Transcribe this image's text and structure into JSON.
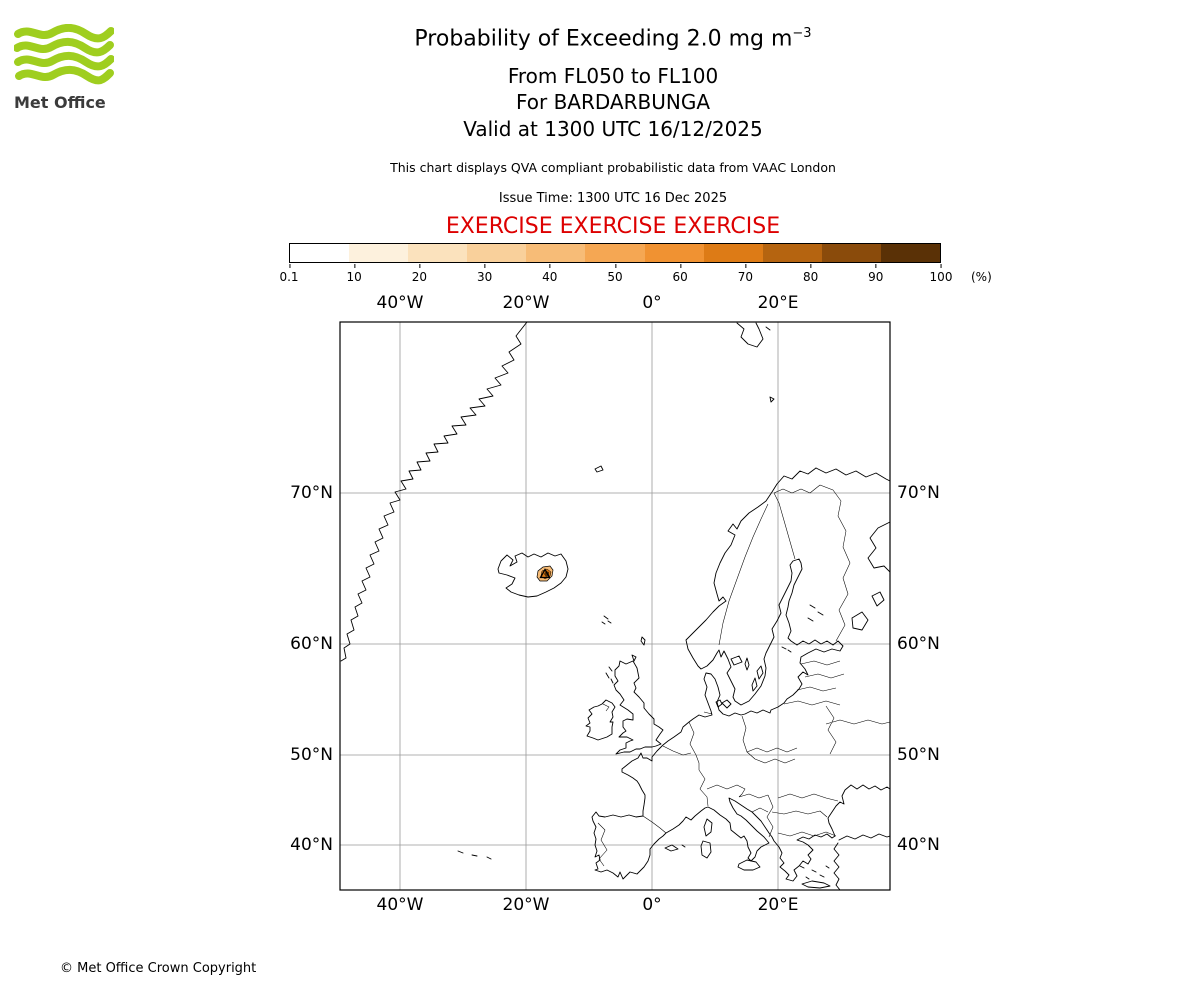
{
  "logo": {
    "text": "Met Office"
  },
  "header": {
    "title": "Probability of Exceeding 2.0 mg m",
    "title_exponent": "−3",
    "line1": "From FL050 to FL100",
    "line2": "For BARDARBUNGA",
    "line3": "Valid at 1300 UTC 16/12/2025",
    "note": "This chart displays QVA compliant probabilistic data from VAAC London",
    "issue_time": "Issue Time: 1300 UTC 16 Dec 2025",
    "exercise": "EXERCISE EXERCISE EXERCISE"
  },
  "colorbar": {
    "tick_labels": [
      "0.1",
      "10",
      "20",
      "30",
      "40",
      "50",
      "60",
      "70",
      "80",
      "90",
      "100"
    ],
    "unit": "(%)",
    "segment_colors": [
      "#ffffff",
      "#fdf1dd",
      "#fbe2bd",
      "#f9d09b",
      "#f7bc77",
      "#f5a753",
      "#f09232",
      "#dd7b16",
      "#b56410",
      "#8a4b0b",
      "#5a3106"
    ]
  },
  "map": {
    "lon_labels": [
      "40°W",
      "20°W",
      "0°",
      "20°E"
    ],
    "lat_labels": [
      "70°N",
      "60°N",
      "50°N",
      "40°N"
    ]
  },
  "colors": {
    "exercise_red": "#dd0000",
    "logo_green": "#9fce1f",
    "gridline_gray": "#999999"
  },
  "footer": {
    "copyright": "© Met Office Crown Copyright"
  }
}
